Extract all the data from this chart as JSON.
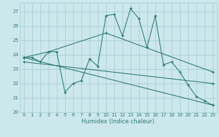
{
  "xlabel": "Humidex (Indice chaleur)",
  "bg_color": "#cce8ed",
  "grid_color": "#aacdd4",
  "line_color": "#2e7b72",
  "marker": "+",
  "xlim": [
    -0.5,
    23.5
  ],
  "ylim": [
    20,
    27.6
  ],
  "yticks": [
    20,
    21,
    22,
    23,
    24,
    25,
    26,
    27
  ],
  "xticks": [
    0,
    1,
    2,
    3,
    4,
    5,
    6,
    7,
    8,
    9,
    10,
    11,
    12,
    13,
    14,
    15,
    16,
    17,
    18,
    19,
    20,
    21,
    22,
    23
  ],
  "line1": [
    [
      0,
      23.8
    ],
    [
      1,
      23.8
    ],
    [
      2,
      23.5
    ],
    [
      3,
      24.2
    ],
    [
      4,
      24.2
    ],
    [
      5,
      21.4
    ],
    [
      6,
      22.0
    ],
    [
      7,
      22.2
    ],
    [
      8,
      23.7
    ],
    [
      9,
      23.2
    ],
    [
      10,
      26.7
    ],
    [
      11,
      26.8
    ],
    [
      12,
      25.3
    ],
    [
      13,
      27.2
    ],
    [
      14,
      26.5
    ],
    [
      15,
      24.5
    ],
    [
      16,
      26.7
    ],
    [
      17,
      23.3
    ],
    [
      18,
      23.5
    ],
    [
      19,
      22.8
    ],
    [
      20,
      21.9
    ],
    [
      21,
      21.1
    ],
    [
      22,
      20.8
    ],
    [
      23,
      20.5
    ]
  ],
  "line2": [
    [
      0,
      23.8
    ],
    [
      3,
      24.2
    ],
    [
      10,
      25.5
    ],
    [
      23,
      22.8
    ]
  ],
  "line3": [
    [
      0,
      23.5
    ],
    [
      23,
      22.0
    ]
  ],
  "line4": [
    [
      0,
      23.8
    ],
    [
      23,
      20.5
    ]
  ]
}
